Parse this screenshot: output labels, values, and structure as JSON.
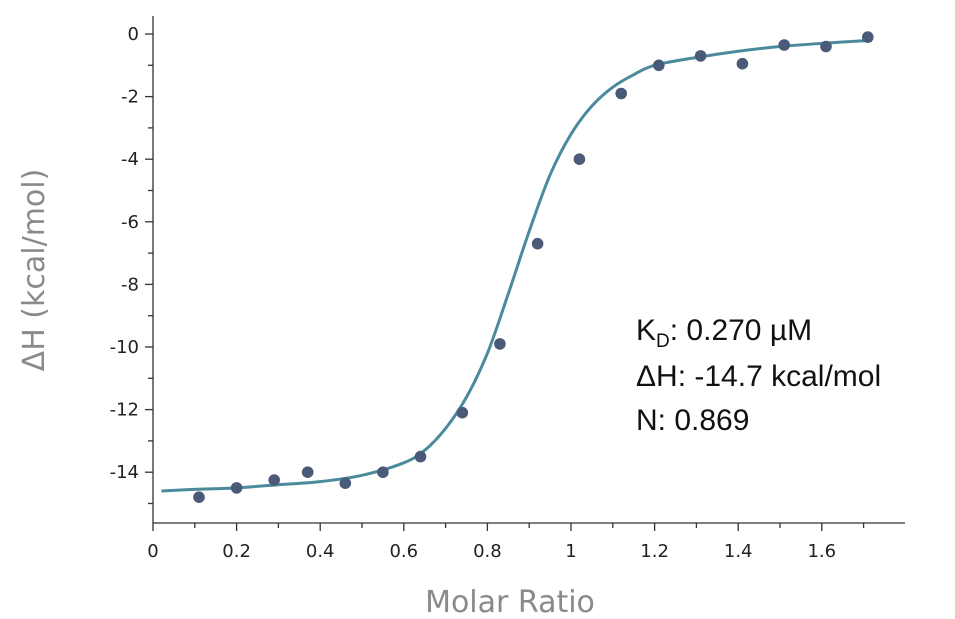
{
  "chart_data": {
    "type": "scatter",
    "xlabel": "Molar Ratio",
    "ylabel": "ΔH (kcal/mol)",
    "xlim": [
      0,
      1.8
    ],
    "ylim": [
      -15.5,
      0.5
    ],
    "x_ticks": [
      0,
      0.2,
      0.4,
      0.6,
      0.8,
      1,
      1.2,
      1.4,
      1.6
    ],
    "x_tick_labels": [
      "0",
      "0.2",
      "0.4",
      "0.6",
      "0.8",
      "1",
      "1.2",
      "1.4",
      "1.6"
    ],
    "y_ticks": [
      0,
      -2,
      -4,
      -6,
      -8,
      -10,
      -12,
      -14
    ],
    "y_tick_labels": [
      "0",
      "-2",
      "-4",
      "-6",
      "-8",
      "-10",
      "-12",
      "-14"
    ],
    "grid": false,
    "series": [
      {
        "kind": "points",
        "color": "#4a5a78",
        "x": [
          0.11,
          0.2,
          0.29,
          0.37,
          0.46,
          0.55,
          0.64,
          0.74,
          0.83,
          0.92,
          1.02,
          1.12,
          1.21,
          1.31,
          1.41,
          1.51,
          1.61,
          1.71
        ],
        "y": [
          -14.8,
          -14.5,
          -14.25,
          -14.0,
          -14.35,
          -14.0,
          -13.5,
          -12.1,
          -9.9,
          -6.7,
          -4.0,
          -1.9,
          -1.0,
          -0.7,
          -0.95,
          -0.35,
          -0.4,
          -0.1
        ]
      },
      {
        "kind": "fit",
        "color": "#4a8a9c",
        "x": [
          0.02,
          0.1,
          0.2,
          0.3,
          0.4,
          0.5,
          0.6,
          0.65,
          0.7,
          0.75,
          0.8,
          0.85,
          0.9,
          0.95,
          1.0,
          1.05,
          1.1,
          1.15,
          1.2,
          1.3,
          1.4,
          1.5,
          1.6,
          1.72
        ],
        "y": [
          -14.6,
          -14.55,
          -14.5,
          -14.4,
          -14.3,
          -14.1,
          -13.7,
          -13.3,
          -12.6,
          -11.6,
          -10.2,
          -8.3,
          -6.3,
          -4.5,
          -3.2,
          -2.3,
          -1.7,
          -1.3,
          -1.0,
          -0.75,
          -0.55,
          -0.4,
          -0.3,
          -0.2
        ]
      }
    ],
    "annotations": {
      "kd_main": "K",
      "kd_sub": "D",
      "kd_rest": ": 0.270 µM",
      "dh": "ΔH:  -14.7 kcal/mol",
      "n": "N: 0.869"
    }
  }
}
